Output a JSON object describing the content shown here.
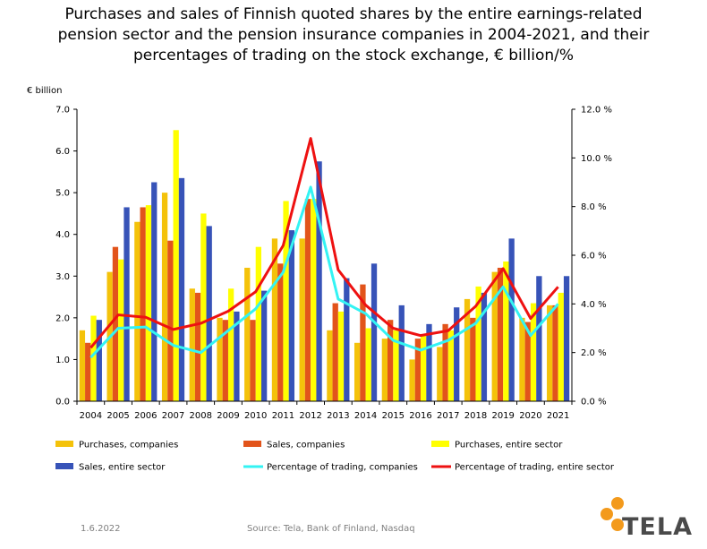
{
  "title": {
    "line1": "Purchases and sales of Finnish quoted shares by the entire earnings-related",
    "line2": "pension sector and the pension insurance companies in 2004-2021, and their",
    "line3": "percentages of trading on the stock exchange, € billion/%"
  },
  "footer": {
    "date": "1.6.2022",
    "source": "Source: Tela, Bank of Finland, Nasdaq",
    "logo": "TELA"
  },
  "colors": {
    "purchases_companies": "#f4c20a",
    "sales_companies": "#e2541b",
    "purchases_sector": "#ffff00",
    "sales_sector": "#3753b8",
    "pct_companies": "#33f3f3",
    "pct_sector": "#ee1111",
    "logo_orange": "#f39a1c"
  },
  "chart_data": {
    "type": "bar",
    "categories": [
      "2004",
      "2005",
      "2006",
      "2007",
      "2008",
      "2009",
      "2010",
      "2011",
      "2012",
      "2013",
      "2014",
      "2015",
      "2016",
      "2017",
      "2018",
      "2019",
      "2020",
      "2021"
    ],
    "ylabel": "€ billion",
    "ylim": [
      0,
      7
    ],
    "yticks": [
      "0.0",
      "1.0",
      "2.0",
      "3.0",
      "4.0",
      "5.0",
      "6.0",
      "7.0"
    ],
    "y2lim": [
      0,
      12
    ],
    "y2ticks": [
      "0.0 %",
      "2.0 %",
      "4.0 %",
      "6.0 %",
      "8.0 %",
      "10.0 %",
      "12.0 %"
    ],
    "grid": false,
    "legend_position": "bottom",
    "series": [
      {
        "name": "Purchases, companies",
        "kind": "bar",
        "axis": "left",
        "color_key": "purchases_companies",
        "values": [
          1.7,
          3.1,
          4.3,
          5.0,
          2.7,
          2.0,
          3.2,
          3.9,
          3.9,
          1.7,
          1.4,
          1.5,
          1.0,
          1.3,
          2.45,
          3.1,
          2.0,
          2.3
        ]
      },
      {
        "name": "Sales, companies",
        "kind": "bar",
        "axis": "left",
        "color_key": "sales_companies",
        "values": [
          1.4,
          3.7,
          4.65,
          3.85,
          2.6,
          1.95,
          1.95,
          3.3,
          4.85,
          2.35,
          2.8,
          1.95,
          1.5,
          1.85,
          2.0,
          3.2,
          1.9,
          2.3
        ]
      },
      {
        "name": "Purchases, entire sector",
        "kind": "bar",
        "axis": "left",
        "color_key": "purchases_sector",
        "values": [
          2.05,
          3.4,
          4.7,
          6.5,
          4.5,
          2.7,
          3.7,
          4.8,
          4.85,
          2.15,
          1.75,
          1.7,
          1.6,
          1.7,
          2.75,
          3.35,
          2.35,
          2.6
        ]
      },
      {
        "name": "Sales, entire sector",
        "kind": "bar",
        "axis": "left",
        "color_key": "sales_sector",
        "values": [
          1.95,
          4.65,
          5.25,
          5.35,
          4.2,
          2.15,
          2.65,
          4.1,
          5.75,
          2.95,
          3.3,
          2.3,
          1.85,
          2.25,
          2.6,
          3.9,
          3.0,
          3.0
        ]
      },
      {
        "name": "Percentage of trading, companies",
        "kind": "line",
        "axis": "right",
        "color_key": "pct_companies",
        "values": [
          1.8,
          3.0,
          3.05,
          2.3,
          2.0,
          2.9,
          3.8,
          5.3,
          8.8,
          4.2,
          3.6,
          2.5,
          2.1,
          2.5,
          3.2,
          4.7,
          2.7,
          4.0
        ]
      },
      {
        "name": "Percentage of trading, entire sector",
        "kind": "line",
        "axis": "right",
        "color_key": "pct_sector",
        "values": [
          2.2,
          3.55,
          3.45,
          2.95,
          3.2,
          3.7,
          4.5,
          6.4,
          10.8,
          5.4,
          3.95,
          3.0,
          2.7,
          2.9,
          3.9,
          5.45,
          3.4,
          4.7
        ]
      }
    ]
  }
}
